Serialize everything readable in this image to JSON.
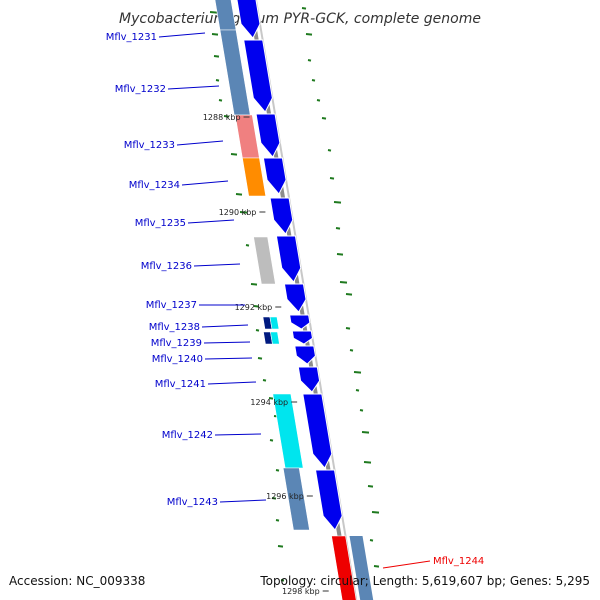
{
  "title": "Mycobacterium gilvum PYR-GCK, complete genome",
  "colors": {
    "strand": "#0000ee",
    "label": "#0000cc",
    "highlight": "#ee0000",
    "backbone": "#8c8c8c",
    "gc": "#1f7a1f",
    "steelblue": "#5b86b5",
    "pink": "#f08080",
    "orange": "#ff8c00",
    "gray": "#bdbdbd",
    "cyan": "#00e5ee",
    "navy": "#001a80"
  },
  "ticks": [
    "1288 kbp",
    "1290 kbp",
    "1292 kbp",
    "1294 kbp",
    "1296 kbp",
    "1298 kbp"
  ],
  "genes": [
    {
      "id": "Mflv_1231",
      "feature_color": "steelblue"
    },
    {
      "id": "Mflv_1232",
      "feature_color": "steelblue"
    },
    {
      "id": "Mflv_1233",
      "feature_color": "pink"
    },
    {
      "id": "Mflv_1234",
      "feature_color": "orange"
    },
    {
      "id": "Mflv_1235",
      "feature_color": null
    },
    {
      "id": "Mflv_1236",
      "feature_color": "gray"
    },
    {
      "id": "Mflv_1237",
      "feature_color": null
    },
    {
      "id": "Mflv_1238",
      "feature_color": "navy"
    },
    {
      "id": "Mflv_1239",
      "feature_color": "navy"
    },
    {
      "id": "Mflv_1240",
      "feature_color": null
    },
    {
      "id": "Mflv_1241",
      "feature_color": null
    },
    {
      "id": "Mflv_1242",
      "feature_color": "cyan"
    },
    {
      "id": "Mflv_1243",
      "feature_color": "steelblue"
    },
    {
      "id": "Mflv_1244",
      "feature_color": "highlight",
      "highlighted": true
    }
  ],
  "footer": {
    "accession": "Accession: NC_009338",
    "topology": "Topology: circular; Length: 5,619,607 bp; Genes: 5,295"
  }
}
